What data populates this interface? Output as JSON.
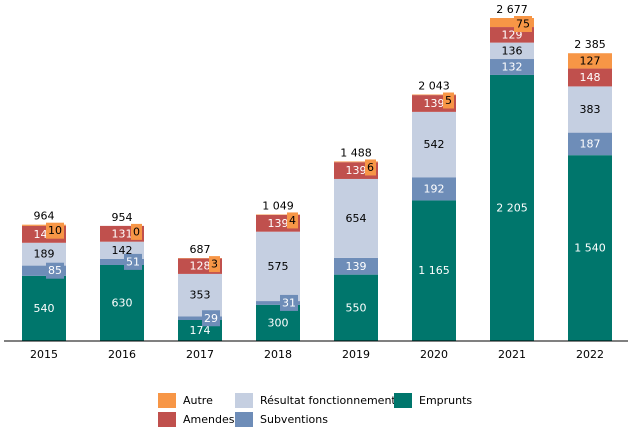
{
  "chart_data": {
    "type": "bar",
    "stacked": true,
    "title": "",
    "xlabel": "",
    "ylabel": "",
    "categories": [
      "2015",
      "2016",
      "2017",
      "2018",
      "2019",
      "2020",
      "2021",
      "2022"
    ],
    "series": [
      {
        "name": "Emprunts",
        "color": "#00766C",
        "label_color": "#ffffff",
        "values": [
          540,
          630,
          174,
          300,
          550,
          1165,
          2205,
          1540
        ],
        "labels": [
          "540",
          "630",
          "174",
          "300",
          "550",
          "1 165",
          "2 205",
          "1 540"
        ]
      },
      {
        "name": "Subventions",
        "color": "#6E8DB8",
        "label_color": "#ffffff",
        "values": [
          85,
          51,
          29,
          31,
          139,
          192,
          132,
          187
        ],
        "labels": [
          "85",
          "51",
          "29",
          "31",
          "139",
          "192",
          "132",
          "187"
        ]
      },
      {
        "name": "Résultat fonctionnement",
        "color": "#C5CFE1",
        "label_color": "#000000",
        "values": [
          189,
          142,
          353,
          575,
          654,
          542,
          136,
          383
        ],
        "labels": [
          "189",
          "142",
          "353",
          "575",
          "654",
          "542",
          "136",
          "383"
        ]
      },
      {
        "name": "Amendes",
        "color": "#C0504D",
        "label_color": "#ffffff",
        "values": [
          140,
          131,
          128,
          139,
          139,
          139,
          129,
          148
        ],
        "labels": [
          "140",
          "131",
          "128",
          "139",
          "139",
          "139",
          "129",
          "148"
        ]
      },
      {
        "name": "Autre",
        "color": "#F79646",
        "label_color": "#000000",
        "values": [
          10,
          0,
          3,
          4,
          6,
          5,
          75,
          127
        ],
        "labels": [
          "10",
          "0",
          "3",
          "4",
          "6",
          "5",
          "75",
          "127"
        ]
      }
    ],
    "totals": [
      964,
      954,
      687,
      1049,
      1488,
      2043,
      2677,
      2385
    ],
    "total_labels": [
      "964",
      "954",
      "687",
      "1 049",
      "1 488",
      "2 043",
      "2 677",
      "2 385"
    ],
    "ylim": [
      0,
      2677
    ],
    "grid": false,
    "legend_position": "bottom",
    "legend": [
      {
        "name": "Autre",
        "color": "#F79646"
      },
      {
        "name": "Résultat fonctionnement",
        "color": "#C5CFE1"
      },
      {
        "name": "Emprunts",
        "color": "#00766C"
      },
      {
        "name": "Amendes",
        "color": "#C0504D"
      },
      {
        "name": "Subventions",
        "color": "#6E8DB8"
      }
    ]
  }
}
